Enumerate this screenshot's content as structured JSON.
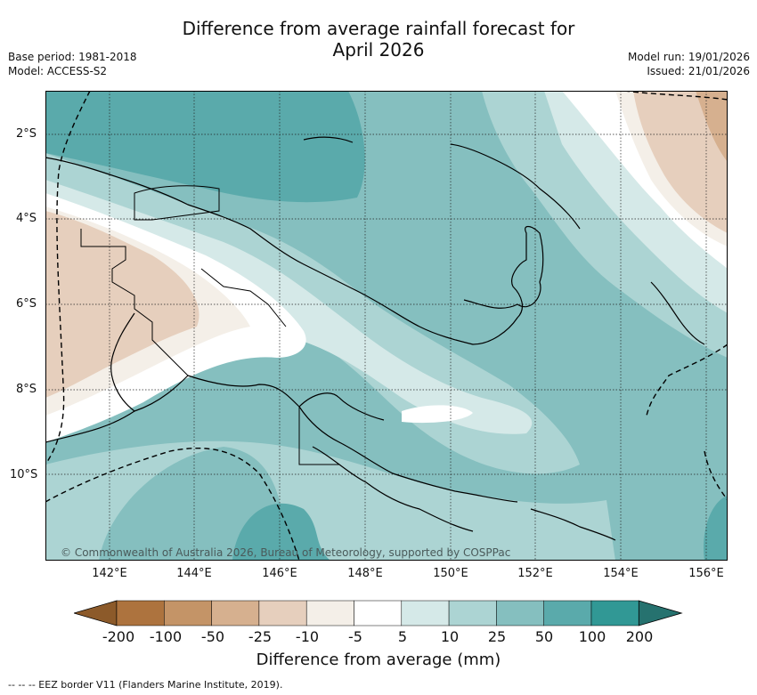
{
  "title_line1": "Difference from average rainfall forecast for",
  "title_line2": "April 2026",
  "meta_left": [
    "Base period: 1981-2018",
    "Model: ACCESS-S2"
  ],
  "meta_right": [
    "Model run: 19/01/2026",
    "Issued: 21/01/2026"
  ],
  "lat_labels": [
    "2°S",
    "4°S",
    "6°S",
    "8°S",
    "10°S"
  ],
  "lon_labels": [
    "142°E",
    "144°E",
    "146°E",
    "148°E",
    "150°E",
    "152°E",
    "154°E",
    "156°E"
  ],
  "copyright": "© Commonwealth of Australia 2026, Bureau of Meteorology, supported by COSPPac",
  "colorbar": {
    "ticks": [
      "-200",
      "-100",
      "-50",
      "-25",
      "-10",
      "-5",
      "5",
      "10",
      "25",
      "50",
      "100",
      "200"
    ],
    "colors": [
      "#8c5a2a",
      "#ad733e",
      "#c49467",
      "#d6b08f",
      "#e6cfbd",
      "#f4efe8",
      "#ffffff",
      "#d5e9e8",
      "#acd4d3",
      "#85bfbf",
      "#5aaaab",
      "#319895",
      "#26726f"
    ],
    "label": "Difference from average (mm)"
  },
  "legend_footer": "--  --  -- EEZ border V11 (Flanders Marine Institute, 2019).",
  "colors": {
    "c10": "#d5e9e8",
    "c25": "#acd4d3",
    "c50": "#85bfbf",
    "c100": "#5aaaab",
    "neg5": "#f4efe8",
    "neg25": "#e6cfbd",
    "neg50": "#d6b08f"
  }
}
